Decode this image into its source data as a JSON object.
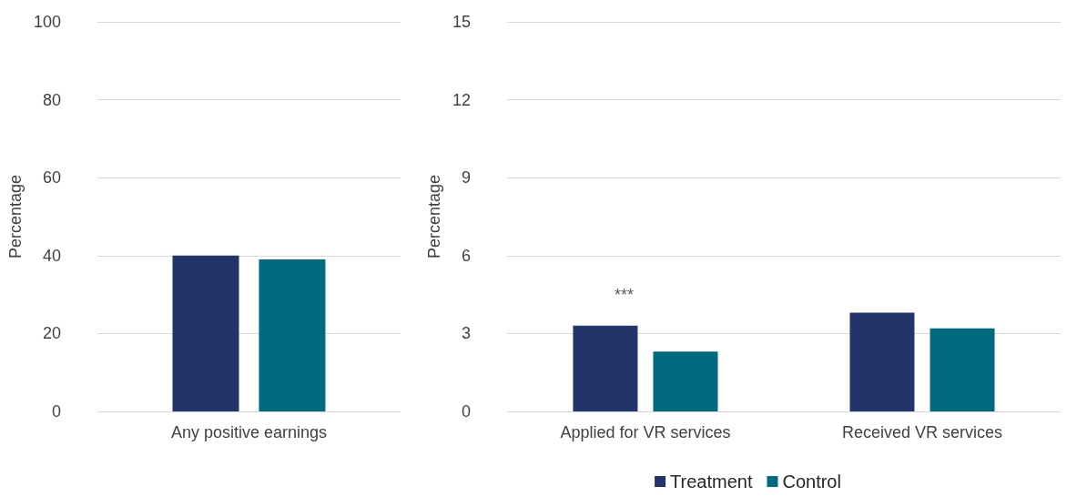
{
  "chart_data": [
    {
      "type": "bar",
      "ylabel": "Percentage",
      "categories": [
        "Any positive earnings"
      ],
      "series": [
        {
          "color": "#22356b",
          "values": [
            40.0
          ]
        },
        {
          "color": "#006b7f",
          "values": [
            39.0
          ]
        }
      ],
      "ylim": [
        0,
        100
      ],
      "yticks": [
        0,
        20,
        40,
        60,
        80,
        100
      ],
      "grid": "y",
      "legend": false
    },
    {
      "type": "bar",
      "ylabel": "Percentage",
      "categories": [
        "Applied for VR services",
        "Received VR services"
      ],
      "series": [
        {
          "name": "Treatment",
          "color": "#22356b",
          "values": [
            3.3,
            3.8
          ]
        },
        {
          "name": "Control",
          "color": "#006b7f",
          "values": [
            2.3,
            3.2
          ]
        }
      ],
      "ylim": [
        0,
        15
      ],
      "yticks": [
        0,
        3,
        6,
        9,
        12,
        15
      ],
      "grid": "y",
      "legend": "bottom",
      "annotations": [
        "***"
      ]
    }
  ]
}
